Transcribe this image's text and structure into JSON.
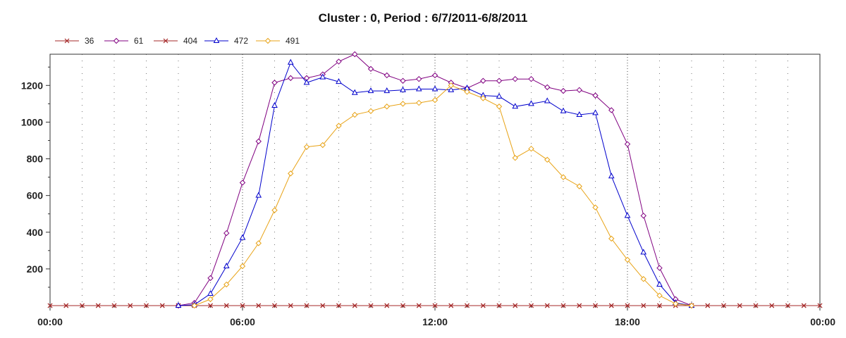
{
  "chart_data": {
    "type": "line",
    "title": "Cluster : 0, Period : 6/7/2011-6/8/2011",
    "xlabel": "",
    "ylabel": "",
    "x_unit": "hours since 00:00",
    "x_range": [
      0,
      24
    ],
    "y_range": [
      0,
      1370
    ],
    "x_ticks": [
      {
        "value": 0,
        "label": "00:00"
      },
      {
        "value": 6,
        "label": "06:00"
      },
      {
        "value": 12,
        "label": "12:00"
      },
      {
        "value": 18,
        "label": "18:00"
      },
      {
        "value": 24,
        "label": "00:00"
      }
    ],
    "y_ticks": [
      {
        "value": 200,
        "label": "200"
      },
      {
        "value": 400,
        "label": "400"
      },
      {
        "value": 600,
        "label": "600"
      },
      {
        "value": 800,
        "label": "800"
      },
      {
        "value": 1000,
        "label": "1000"
      },
      {
        "value": 1200,
        "label": "1200"
      }
    ],
    "grid": "vertical dotted every 0.5 h",
    "legend_position": "top-left",
    "series": [
      {
        "name": "36",
        "color": "#a52a2a",
        "marker": "x",
        "x": [
          0,
          0.5,
          1,
          1.5,
          2,
          2.5,
          3,
          3.5,
          4,
          4.5,
          5,
          5.5,
          6,
          6.5,
          7,
          7.5,
          8,
          8.5,
          9,
          9.5,
          10,
          10.5,
          11,
          11.5,
          12,
          12.5,
          13,
          13.5,
          14,
          14.5,
          15,
          15.5,
          16,
          16.5,
          17,
          17.5,
          18,
          18.5,
          19,
          19.5,
          20,
          20.5,
          21,
          21.5,
          22,
          22.5,
          23,
          23.5,
          24
        ],
        "y": [
          0,
          0,
          0,
          0,
          0,
          0,
          0,
          0,
          0,
          0,
          0,
          0,
          0,
          0,
          0,
          0,
          0,
          0,
          0,
          0,
          0,
          0,
          0,
          0,
          0,
          0,
          0,
          0,
          0,
          0,
          0,
          0,
          0,
          0,
          0,
          0,
          0,
          0,
          0,
          0,
          0,
          0,
          0,
          0,
          0,
          0,
          0,
          0,
          0
        ]
      },
      {
        "name": "61",
        "color": "#800080",
        "marker": "diamond",
        "x": [
          4,
          4.5,
          5,
          5.5,
          6,
          6.5,
          7,
          7.5,
          8,
          8.5,
          9,
          9.5,
          10,
          10.5,
          11,
          11.5,
          12,
          12.5,
          13,
          13.5,
          14,
          14.5,
          15,
          15.5,
          16,
          16.5,
          17,
          17.5,
          18,
          18.5,
          19,
          19.5,
          20
        ],
        "y": [
          0,
          15,
          150,
          395,
          670,
          895,
          1215,
          1240,
          1240,
          1260,
          1330,
          1370,
          1290,
          1255,
          1225,
          1235,
          1255,
          1215,
          1185,
          1225,
          1225,
          1235,
          1235,
          1190,
          1170,
          1175,
          1145,
          1065,
          880,
          490,
          205,
          35,
          0
        ]
      },
      {
        "name": "404",
        "color": "#a52a2a",
        "marker": "x",
        "x": [
          0,
          0.5,
          1,
          1.5,
          2,
          2.5,
          3,
          3.5,
          4,
          4.5,
          5,
          5.5,
          6,
          6.5,
          7,
          7.5,
          8,
          8.5,
          9,
          9.5,
          10,
          10.5,
          11,
          11.5,
          12,
          12.5,
          13,
          13.5,
          14,
          14.5,
          15,
          15.5,
          16,
          16.5,
          17,
          17.5,
          18,
          18.5,
          19,
          19.5,
          20,
          20.5,
          21,
          21.5,
          22,
          22.5,
          23,
          23.5,
          24
        ],
        "y": [
          0,
          0,
          0,
          0,
          0,
          0,
          0,
          0,
          0,
          0,
          0,
          0,
          0,
          0,
          0,
          0,
          0,
          0,
          0,
          0,
          0,
          0,
          0,
          0,
          0,
          0,
          0,
          0,
          0,
          0,
          0,
          0,
          0,
          0,
          0,
          0,
          0,
          0,
          0,
          0,
          0,
          0,
          0,
          0,
          0,
          0,
          0,
          0,
          0
        ]
      },
      {
        "name": "472",
        "color": "#0000cc",
        "marker": "triangle",
        "x": [
          4,
          4.5,
          5,
          5.5,
          6,
          6.5,
          7,
          7.5,
          8,
          8.5,
          9,
          9.5,
          10,
          10.5,
          11,
          11.5,
          12,
          12.5,
          13,
          13.5,
          14,
          14.5,
          15,
          15.5,
          16,
          16.5,
          17,
          17.5,
          18,
          18.5,
          19,
          19.5,
          20
        ],
        "y": [
          0,
          5,
          65,
          215,
          370,
          600,
          1090,
          1325,
          1215,
          1245,
          1220,
          1160,
          1170,
          1170,
          1175,
          1180,
          1180,
          1175,
          1185,
          1145,
          1140,
          1085,
          1100,
          1115,
          1060,
          1040,
          1050,
          705,
          490,
          290,
          115,
          15,
          0
        ]
      },
      {
        "name": "491",
        "color": "#e8a317",
        "marker": "diamond",
        "x": [
          4.5,
          5,
          5.5,
          6,
          6.5,
          7,
          7.5,
          8,
          8.5,
          9,
          9.5,
          10,
          10.5,
          11,
          11.5,
          12,
          12.5,
          13,
          13.5,
          14,
          14.5,
          15,
          15.5,
          16,
          16.5,
          17,
          17.5,
          18,
          18.5,
          19,
          19.5,
          20
        ],
        "y": [
          0,
          35,
          115,
          215,
          340,
          520,
          720,
          865,
          875,
          980,
          1040,
          1060,
          1085,
          1100,
          1105,
          1120,
          1200,
          1165,
          1130,
          1085,
          805,
          855,
          795,
          700,
          650,
          535,
          365,
          250,
          145,
          55,
          10,
          0
        ]
      }
    ]
  }
}
